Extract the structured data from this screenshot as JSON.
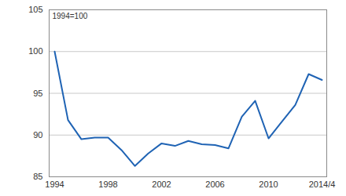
{
  "chart_data": {
    "type": "line",
    "annotation": "1994=100",
    "categories": [
      "1994",
      null,
      null,
      null,
      "1998",
      null,
      null,
      null,
      "2002",
      null,
      null,
      null,
      "2006",
      null,
      null,
      null,
      "2010",
      null,
      null,
      null,
      "2014/4"
    ],
    "values": [
      100,
      91.8,
      89.5,
      89.7,
      89.7,
      88.2,
      86.3,
      87.8,
      89.0,
      88.7,
      89.3,
      88.9,
      88.8,
      88.4,
      92.2,
      94.1,
      89.6,
      91.6,
      93.6,
      97.3,
      96.6
    ],
    "color": "#1f63b4",
    "ylim": [
      85,
      105
    ],
    "yticks": [
      85,
      90,
      95,
      100,
      105
    ],
    "grid": true
  }
}
